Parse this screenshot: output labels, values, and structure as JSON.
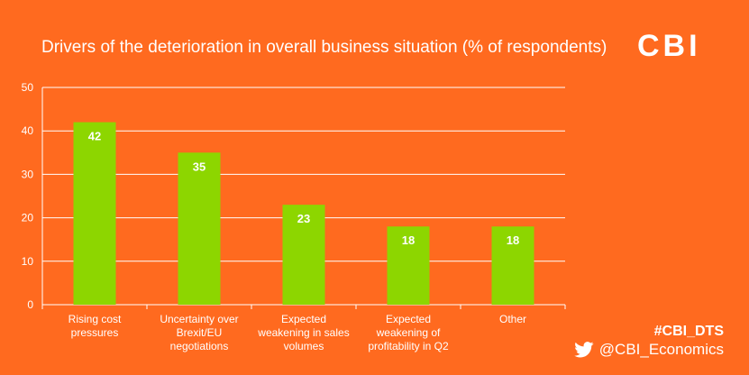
{
  "brand": {
    "logo_text": "CBI",
    "hashtag": "#CBI_DTS",
    "twitter_handle": "@CBI_Economics",
    "background_color": "#FF6A1F",
    "bar_color": "#8DD600",
    "twitter_icon": "twitter-bird-icon"
  },
  "chart_data": {
    "type": "bar",
    "title": "Drivers of the deterioration in overall business situation (% of respondents)",
    "xlabel": "",
    "ylabel": "",
    "ylim": [
      0,
      50
    ],
    "yticks": [
      0,
      10,
      20,
      30,
      40,
      50
    ],
    "grid": true,
    "categories": [
      [
        "Rising cost",
        "pressures"
      ],
      [
        "Uncertainty over",
        "Brexit/EU",
        "negotiations"
      ],
      [
        "Expected",
        "weakening in sales",
        "volumes"
      ],
      [
        "Expected",
        "weakening of",
        "profitability in Q2"
      ],
      [
        "Other"
      ]
    ],
    "values": [
      42,
      35,
      23,
      18,
      18
    ]
  }
}
